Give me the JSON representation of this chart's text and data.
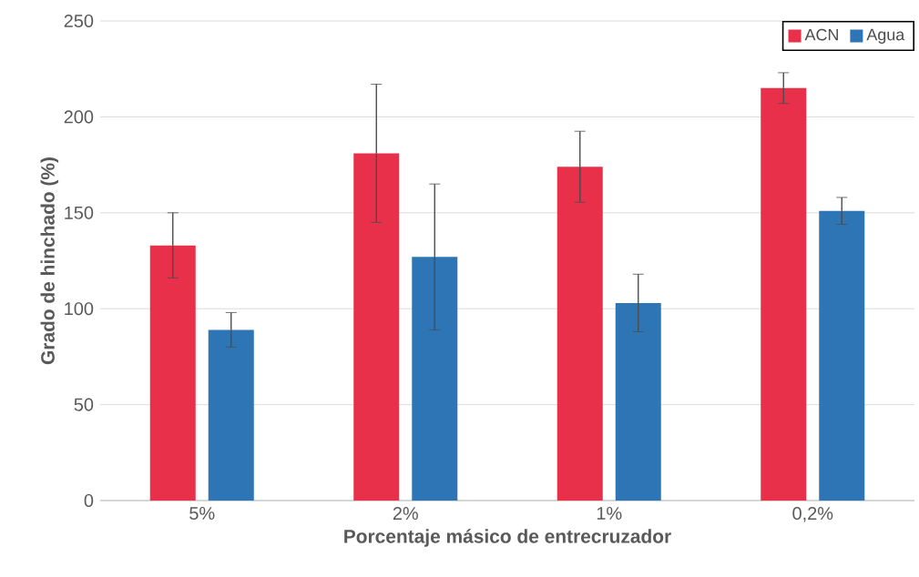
{
  "chart_data": {
    "type": "bar",
    "xlabel": "Porcentaje másico de entrecruzador",
    "ylabel": "Grado de hinchado (%)",
    "categories": [
      "5%",
      "2%",
      "1%",
      "0,2%"
    ],
    "series": [
      {
        "name": "ACN",
        "color": "#e8304a",
        "values": [
          133,
          181,
          174,
          215
        ],
        "errors": [
          17,
          36,
          18.5,
          8
        ]
      },
      {
        "name": "Agua",
        "color": "#2e75b6",
        "values": [
          89,
          127,
          103,
          151
        ],
        "errors": [
          9,
          38,
          15,
          7
        ]
      }
    ],
    "ylim": [
      0,
      250
    ],
    "yticks": [
      0,
      50,
      100,
      150,
      200,
      250
    ],
    "grid": "y",
    "legend": "top right"
  }
}
